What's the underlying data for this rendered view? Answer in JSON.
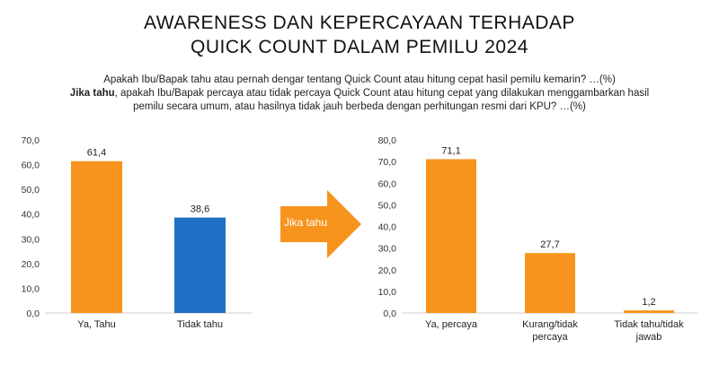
{
  "title_line1": "AWARENESS DAN KEPERCAYAAN TERHADAP",
  "title_line2": "QUICK COUNT DALAM PEMILU 2024",
  "question1": "Apakah Ibu/Bapak tahu atau pernah dengar tentang Quick Count atau hitung cepat hasil pemilu kemarin? …(%)",
  "question2_bold": "Jika tahu",
  "question2_rest": ", apakah Ibu/Bapak percaya atau tidak percaya Quick Count atau hitung cepat yang dilakukan menggambarkan hasil",
  "question2_line2": "pemilu secara umum, atau hasilnya tidak jauh berbeda dengan perhitungan resmi dari KPU? …(%)",
  "arrow_label": "Jika tahu",
  "colors": {
    "orange": "#F7941D",
    "blue": "#1F6FC5",
    "arrow": "#F7941D"
  },
  "chart_data": [
    {
      "type": "bar",
      "categories": [
        [
          "Ya, Tahu"
        ],
        [
          "Tidak tahu"
        ]
      ],
      "values": [
        61.4,
        38.6
      ],
      "value_labels": [
        "61,4",
        "38,6"
      ],
      "bar_colors": [
        "#F7941D",
        "#1F6FC5"
      ],
      "ylim": [
        0,
        70
      ],
      "yticks": [
        "0,0",
        "10,0",
        "20,0",
        "30,0",
        "40,0",
        "50,0",
        "60,0",
        "70,0"
      ],
      "grid": false
    },
    {
      "type": "bar",
      "categories": [
        [
          "Ya, percaya"
        ],
        [
          "Kurang/tidak",
          "percaya"
        ],
        [
          "Tidak tahu/tidak",
          "jawab"
        ]
      ],
      "values": [
        71.1,
        27.7,
        1.2
      ],
      "value_labels": [
        "71,1",
        "27,7",
        "1,2"
      ],
      "bar_colors": [
        "#F7941D",
        "#F7941D",
        "#F7941D"
      ],
      "ylim": [
        0,
        80
      ],
      "yticks": [
        "0,0",
        "10,0",
        "20,0",
        "30,0",
        "40,0",
        "50,0",
        "60,0",
        "70,0",
        "80,0"
      ],
      "grid": false
    }
  ]
}
